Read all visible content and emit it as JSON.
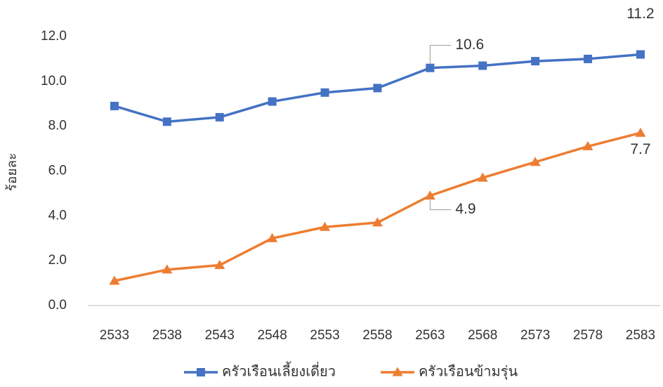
{
  "chart_data": {
    "type": "line",
    "y_label": "ร้อยละ",
    "categories": [
      "2533",
      "2538",
      "2543",
      "2548",
      "2553",
      "2558",
      "2563",
      "2568",
      "2573",
      "2578",
      "2583"
    ],
    "series": [
      {
        "name": "ครัวเรือนเลี้ยงเดี่ยว",
        "color": "#4472c4",
        "marker": "square",
        "values": [
          8.9,
          8.2,
          8.4,
          9.1,
          9.5,
          9.7,
          10.6,
          10.7,
          10.9,
          11.0,
          11.2
        ],
        "value_labels": [
          null,
          null,
          null,
          null,
          null,
          null,
          "10.6",
          null,
          null,
          null,
          "11.2"
        ]
      },
      {
        "name": "ครัวเรือนข้ามรุ่น",
        "color": "#ed7d31",
        "marker": "triangle",
        "values": [
          1.1,
          1.6,
          1.8,
          3.0,
          3.5,
          3.7,
          4.9,
          5.7,
          6.4,
          7.1,
          7.7
        ],
        "value_labels": [
          null,
          null,
          null,
          null,
          null,
          null,
          "4.9",
          null,
          null,
          null,
          "7.7"
        ]
      }
    ],
    "ylim": [
      0,
      12
    ],
    "yticks": [
      {
        "value": 0,
        "label": "0.0"
      },
      {
        "value": 2,
        "label": "2.0"
      },
      {
        "value": 4,
        "label": "4.0"
      },
      {
        "value": 6,
        "label": "6.0"
      },
      {
        "value": 8,
        "label": "8.0"
      },
      {
        "value": 10,
        "label": "10.0"
      },
      {
        "value": 12,
        "label": "12.0"
      }
    ],
    "grid": false,
    "legend": "bottom"
  }
}
